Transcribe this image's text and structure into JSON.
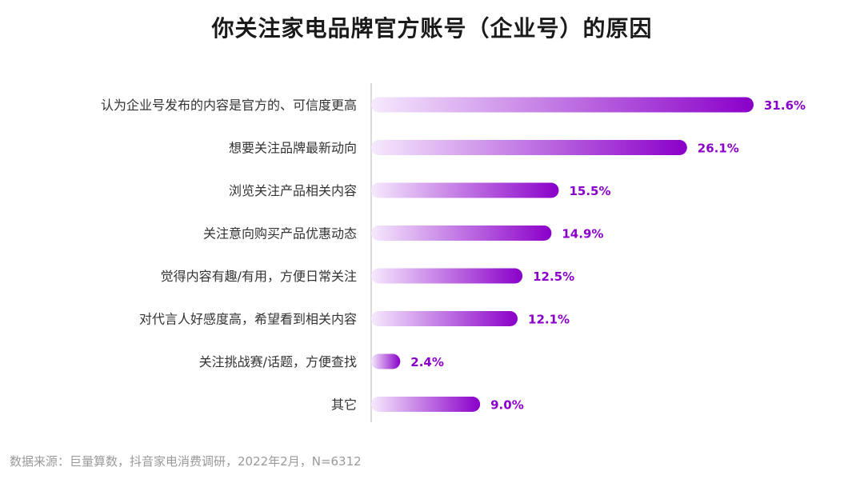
{
  "title": "你关注家电品牌官方账号（企业号）的原因",
  "source": "数据来源：巨量算数，抖音家电消费调研，2022年2月，N=6312",
  "colors": {
    "bar_start": "#f6e9fd",
    "bar_end": "#8a00c9",
    "label": "#8a00c9",
    "category": "#333333",
    "axis": "#cfcfcf"
  },
  "chart_data": {
    "type": "bar",
    "orientation": "horizontal",
    "value_unit": "%",
    "xlim": [
      0,
      31.6
    ],
    "grid": false,
    "categories": [
      "认为企业号发布的内容是官方的、可信度更高",
      "想要关注品牌最新动向",
      "浏览关注产品相关内容",
      "关注意向购买产品优惠动态",
      "觉得内容有趣/有用，方便日常关注",
      "对代言人好感度高，希望看到相关内容",
      "关注挑战赛/话题，方便查找",
      "其它"
    ],
    "values": [
      31.6,
      26.1,
      15.5,
      14.9,
      12.5,
      12.1,
      2.4,
      9.0
    ],
    "labels": [
      "31.6%",
      "26.1%",
      "15.5%",
      "14.9%",
      "12.5%",
      "12.1%",
      "2.4%",
      "9.0%"
    ]
  }
}
